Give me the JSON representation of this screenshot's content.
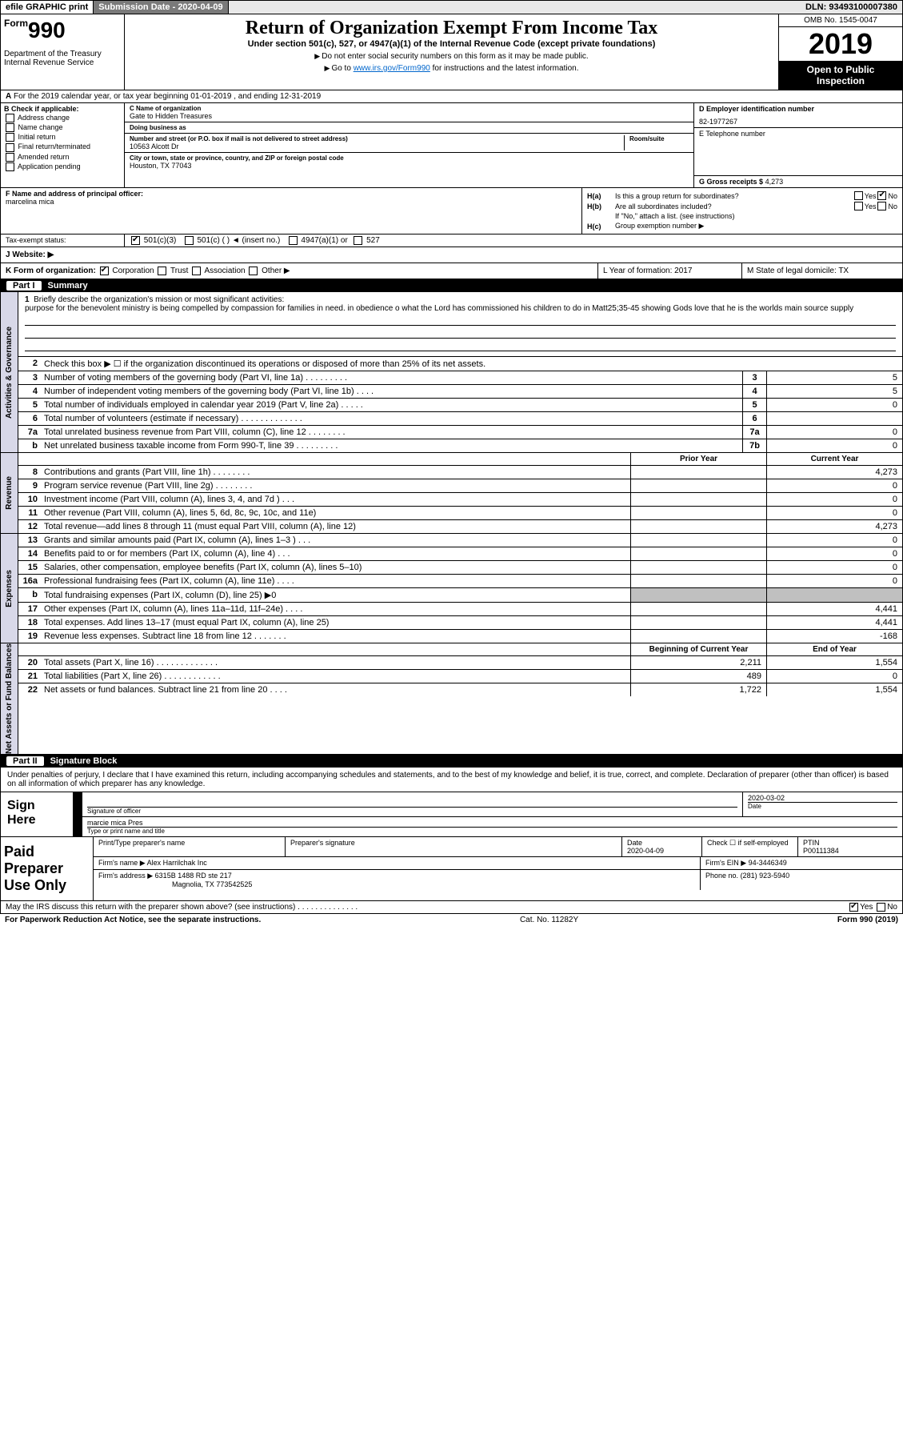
{
  "topbar": {
    "efile": "efile GRAPHIC print",
    "submission_label": "Submission Date - 2020-04-09",
    "dln": "DLN: 93493100007380"
  },
  "header": {
    "form_prefix": "Form",
    "form_number": "990",
    "dept": "Department of the Treasury\nInternal Revenue Service",
    "title": "Return of Organization Exempt From Income Tax",
    "subtitle": "Under section 501(c), 527, or 4947(a)(1) of the Internal Revenue Code (except private foundations)",
    "instr1": "Do not enter social security numbers on this form as it may be made public.",
    "instr2_pre": "Go to ",
    "instr2_link": "www.irs.gov/Form990",
    "instr2_post": " for instructions and the latest information.",
    "omb": "OMB No. 1545-0047",
    "year": "2019",
    "open_public": "Open to Public Inspection"
  },
  "line_a": "For the 2019 calendar year, or tax year beginning 01-01-2019    , and ending 12-31-2019",
  "section_b": {
    "label": "B Check if applicable:",
    "items": [
      "Address change",
      "Name change",
      "Initial return",
      "Final return/terminated",
      "Amended return",
      "Application pending"
    ]
  },
  "section_c": {
    "name_lbl": "C Name of organization",
    "name": "Gate to Hidden Treasures",
    "dba_lbl": "Doing business as",
    "dba": "",
    "addr_lbl": "Number and street (or P.O. box if mail is not delivered to street address)",
    "room_lbl": "Room/suite",
    "addr": "10563 Alcott Dr",
    "city_lbl": "City or town, state or province, country, and ZIP or foreign postal code",
    "city": "Houston, TX  77043"
  },
  "section_d": {
    "ein_lbl": "D Employer identification number",
    "ein": "82-1977267",
    "phone_lbl": "E Telephone number",
    "phone": "",
    "gross_lbl": "G Gross receipts $",
    "gross": "4,273"
  },
  "section_f": {
    "lbl": "F  Name and address of principal officer:",
    "name": "marcelina mica"
  },
  "section_h": {
    "a": "Is this a group return for subordinates?",
    "b": "Are all subordinates included?",
    "b_note": "If \"No,\" attach a list. (see instructions)",
    "c": "Group exemption number ▶"
  },
  "tax_status": {
    "lbl": "Tax-exempt status:",
    "opts": [
      "501(c)(3)",
      "501(c) (   ) ◄ (insert no.)",
      "4947(a)(1) or",
      "527"
    ]
  },
  "row_j": "J   Website: ▶",
  "row_k": "K Form of organization:",
  "row_k_opts": [
    "Corporation",
    "Trust",
    "Association",
    "Other ▶"
  ],
  "row_l": "L Year of formation: 2017",
  "row_m": "M State of legal domicile: TX",
  "part1": {
    "label": "Part I",
    "title": "Summary",
    "line1_lbl": "Briefly describe the organization's mission or most significant activities:",
    "line1_text": "purpose for the benevolent ministry is being compelled by compassion for families in need. in obedience o what the Lord has commissioned his children to do in Matt25;35-45 showing Gods love that he is the worlds main source supply",
    "line2": "Check this box ▶ ☐  if the organization discontinued its operations or disposed of more than 25% of its net assets.",
    "rows_top": [
      {
        "n": "3",
        "d": "Number of voting members of the governing body (Part VI, line 1a)   .   .   .   .   .   .   .   .   .",
        "ln": "3",
        "v": "5"
      },
      {
        "n": "4",
        "d": "Number of independent voting members of the governing body (Part VI, line 1b)   .   .   .   .",
        "ln": "4",
        "v": "5"
      },
      {
        "n": "5",
        "d": "Total number of individuals employed in calendar year 2019 (Part V, line 2a)   .   .   .   .   .",
        "ln": "5",
        "v": "0"
      },
      {
        "n": "6",
        "d": "Total number of volunteers (estimate if necessary)    .   .   .   .   .   .   .   .   .   .   .   .   .",
        "ln": "6",
        "v": ""
      },
      {
        "n": "7a",
        "d": "Total unrelated business revenue from Part VIII, column (C), line 12   .   .   .   .   .   .   .   .",
        "ln": "7a",
        "v": "0"
      },
      {
        "n": "b",
        "d": "Net unrelated business taxable income from Form 990-T, line 39   .   .   .   .   .   .   .   .   .",
        "ln": "7b",
        "v": "0"
      }
    ],
    "col_hdr_prior": "Prior Year",
    "col_hdr_current": "Current Year",
    "revenue_rows": [
      {
        "n": "8",
        "d": "Contributions and grants (Part VIII, line 1h)   .   .   .   .   .   .   .   .",
        "p": "",
        "c": "4,273"
      },
      {
        "n": "9",
        "d": "Program service revenue (Part VIII, line 2g)   .   .   .   .   .   .   .   .",
        "p": "",
        "c": "0"
      },
      {
        "n": "10",
        "d": "Investment income (Part VIII, column (A), lines 3, 4, and 7d )   .   .   .",
        "p": "",
        "c": "0"
      },
      {
        "n": "11",
        "d": "Other revenue (Part VIII, column (A), lines 5, 6d, 8c, 9c, 10c, and 11e)",
        "p": "",
        "c": "0"
      },
      {
        "n": "12",
        "d": "Total revenue—add lines 8 through 11 (must equal Part VIII, column (A), line 12)",
        "p": "",
        "c": "4,273"
      }
    ],
    "expense_rows": [
      {
        "n": "13",
        "d": "Grants and similar amounts paid (Part IX, column (A), lines 1–3 )   .   .   .",
        "p": "",
        "c": "0"
      },
      {
        "n": "14",
        "d": "Benefits paid to or for members (Part IX, column (A), line 4)   .   .   .",
        "p": "",
        "c": "0"
      },
      {
        "n": "15",
        "d": "Salaries, other compensation, employee benefits (Part IX, column (A), lines 5–10)",
        "p": "",
        "c": "0"
      },
      {
        "n": "16a",
        "d": "Professional fundraising fees (Part IX, column (A), line 11e)   .   .   .   .",
        "p": "",
        "c": "0"
      },
      {
        "n": "b",
        "d": "Total fundraising expenses (Part IX, column (D), line 25) ▶0",
        "p": "grey",
        "c": "grey"
      },
      {
        "n": "17",
        "d": "Other expenses (Part IX, column (A), lines 11a–11d, 11f–24e)   .   .   .   .",
        "p": "",
        "c": "4,441"
      },
      {
        "n": "18",
        "d": "Total expenses. Add lines 13–17 (must equal Part IX, column (A), line 25)",
        "p": "",
        "c": "4,441"
      },
      {
        "n": "19",
        "d": "Revenue less expenses. Subtract line 18 from line 12   .   .   .   .   .   .   .",
        "p": "",
        "c": "-168"
      }
    ],
    "col_hdr_begin": "Beginning of Current Year",
    "col_hdr_end": "End of Year",
    "net_rows": [
      {
        "n": "20",
        "d": "Total assets (Part X, line 16)   .   .   .   .   .   .   .   .   .   .   .   .   .",
        "p": "2,211",
        "c": "1,554"
      },
      {
        "n": "21",
        "d": "Total liabilities (Part X, line 26)   .   .   .   .   .   .   .   .   .   .   .   .",
        "p": "489",
        "c": "0"
      },
      {
        "n": "22",
        "d": "Net assets or fund balances. Subtract line 21 from line 20   .   .   .   .",
        "p": "1,722",
        "c": "1,554"
      }
    ]
  },
  "vtabs": {
    "gov": "Activities & Governance",
    "rev": "Revenue",
    "exp": "Expenses",
    "net": "Net Assets or Fund Balances"
  },
  "part2": {
    "label": "Part II",
    "title": "Signature Block",
    "intro": "Under penalties of perjury, I declare that I have examined this return, including accompanying schedules and statements, and to the best of my knowledge and belief, it is true, correct, and complete. Declaration of preparer (other than officer) is based on all information of which preparer has any knowledge.",
    "sign_here": "Sign Here",
    "sig_officer_lbl": "Signature of officer",
    "sig_date": "2020-03-02",
    "sig_date_lbl": "Date",
    "sig_name": "marcie mica Pres",
    "sig_name_lbl": "Type or print name and title"
  },
  "preparer": {
    "label": "Paid Preparer Use Only",
    "h_name": "Print/Type preparer's name",
    "h_sig": "Preparer's signature",
    "h_date": "Date",
    "date": "2020-04-09",
    "h_check": "Check ☐ if self-employed",
    "h_ptin": "PTIN",
    "ptin": "P00111384",
    "firm_name_lbl": "Firm's name     ▶",
    "firm_name": "Alex Harrilchak Inc",
    "firm_ein_lbl": "Firm's EIN ▶",
    "firm_ein": "94-3446349",
    "firm_addr_lbl": "Firm's address ▶",
    "firm_addr": "6315B 1488 RD ste 217",
    "firm_city": "Magnolia, TX  773542525",
    "phone_lbl": "Phone no.",
    "phone": "(281) 923-5940"
  },
  "discuss": "May the IRS discuss this return with the preparer shown above? (see instructions)    .   .   .   .   .   .   .   .   .   .   .   .   .   .",
  "footer": {
    "paperwork": "For Paperwork Reduction Act Notice, see the separate instructions.",
    "catno": "Cat. No. 11282Y",
    "formno": "Form 990 (2019)"
  }
}
